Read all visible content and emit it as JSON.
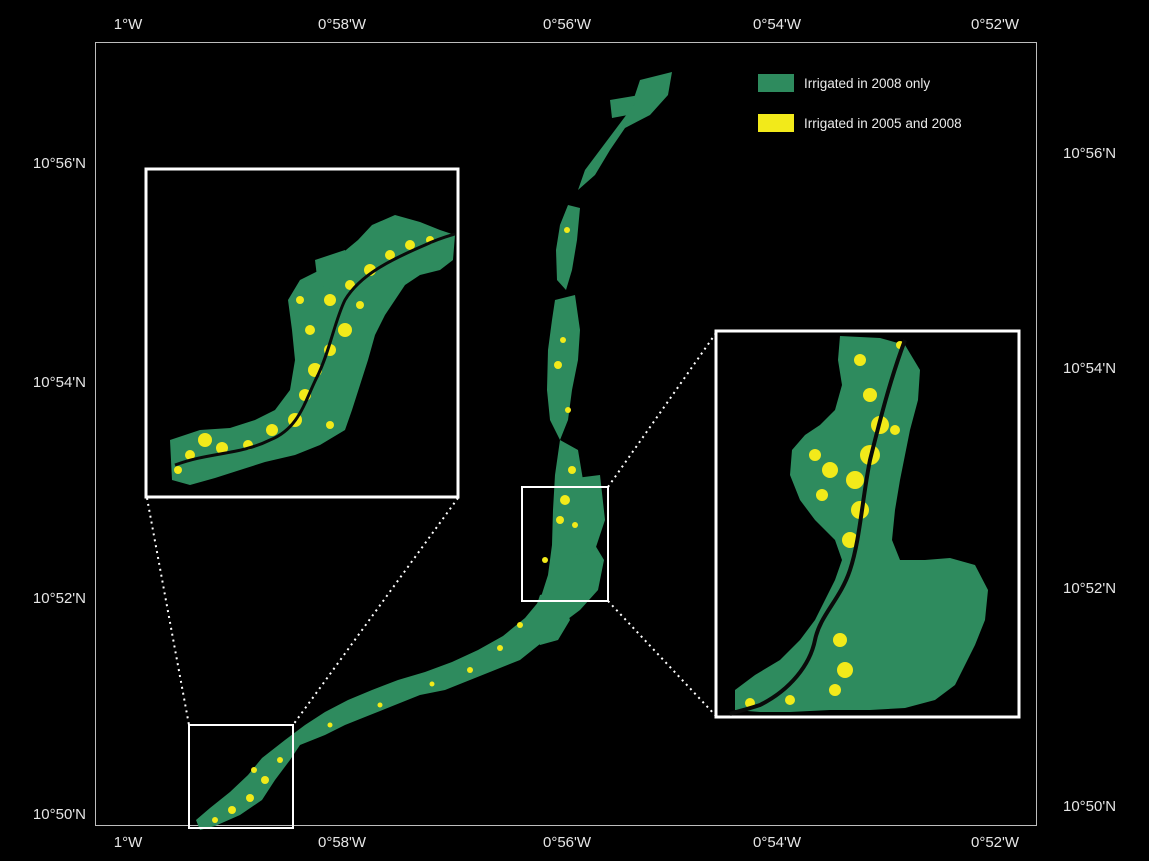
{
  "axes": {
    "top_ticks": [
      "1°W",
      "0°58'W",
      "0°56'W",
      "0°54'W",
      "0°52'W"
    ],
    "bottom_ticks": [
      "1°W",
      "0°58'W",
      "0°56'W",
      "0°54'W",
      "0°52'W"
    ],
    "left_ticks": [
      "10°56'N",
      "10°54'N",
      "10°52'N",
      "10°50'N"
    ],
    "right_ticks": [
      "10°56'N",
      "10°54'N",
      "10°52'N",
      "10°50'N"
    ]
  },
  "legend": {
    "items": [
      {
        "label": "Irrigated in 2008 only",
        "color": "#2e8b5e"
      },
      {
        "label": "Irrigated in 2005 and 2008",
        "color": "#f2ea1a"
      }
    ]
  },
  "colors": {
    "background": "#000000",
    "irrigated_2008_only": "#2e8b5e",
    "irrigated_2005_2008": "#f2ea1a",
    "river": "#0a0a0a",
    "frame": "#ffffff"
  }
}
